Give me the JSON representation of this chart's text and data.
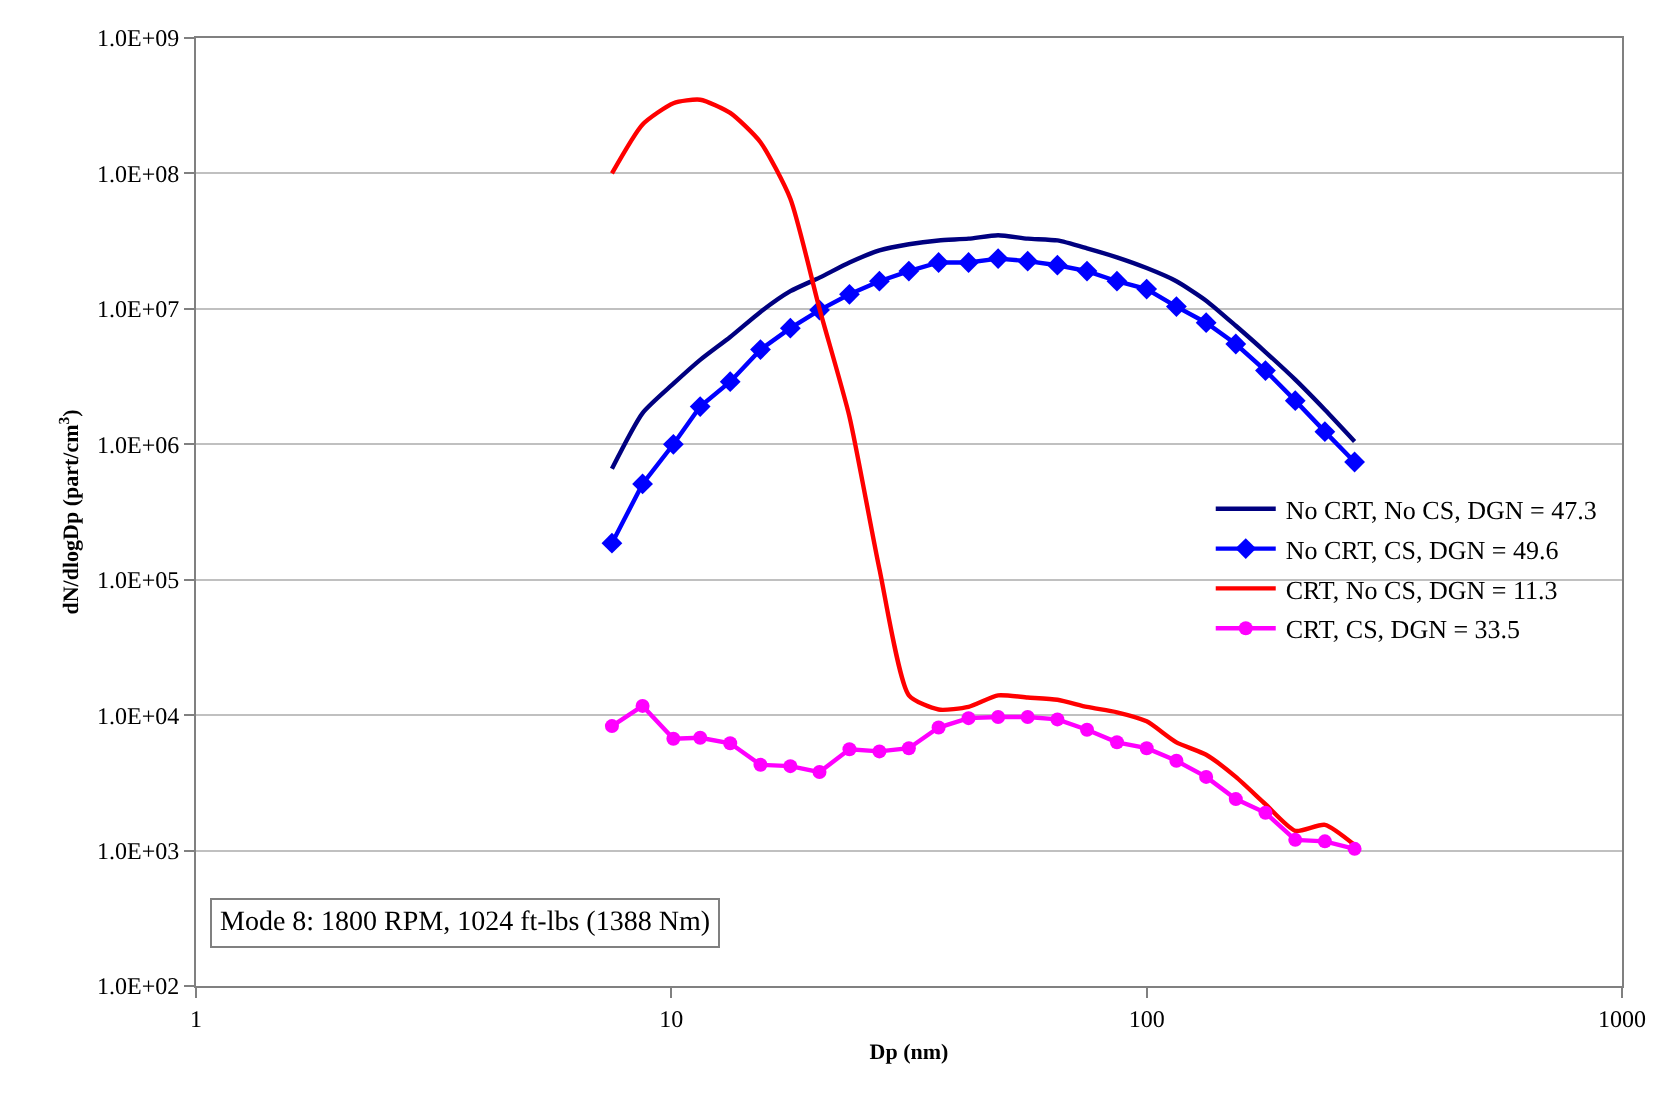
{
  "chart_data": {
    "type": "line",
    "xlabel": "Dp (nm)",
    "ylabel": "dN/dlogDp (part/cm$^{3}$)",
    "log": "xy",
    "x": [
      7.5,
      8.7,
      10.1,
      11.5,
      13.3,
      15.4,
      17.8,
      20.5,
      23.7,
      27.4,
      31.6,
      36.5,
      42.2,
      48.7,
      56.2,
      64.9,
      74.9,
      86.6,
      100,
      115.5,
      133.4,
      154,
      177.8,
      205.4,
      237.1,
      273.8
    ],
    "xlim": [
      1,
      1000
    ],
    "xticks": [
      1,
      10,
      100,
      1000
    ],
    "ylim": [
      100,
      1000000000
    ],
    "yticks": [
      {
        "value": 100,
        "label": "1.0E+02"
      },
      {
        "value": 1000,
        "label": "1.0E+03"
      },
      {
        "value": 10000,
        "label": "1.0E+04"
      },
      {
        "value": 100000,
        "label": "1.0E+05"
      },
      {
        "value": 1000000,
        "label": "1.0E+06"
      },
      {
        "value": 10000000,
        "label": "1.0E+07"
      },
      {
        "value": 100000000,
        "label": "1.0E+08"
      },
      {
        "value": 1000000000,
        "label": "1.0E+09"
      }
    ],
    "grid": "y",
    "legend": "right",
    "series": [
      {
        "name": "No CRT, No CS, DGN = 47.3",
        "color": "#000080",
        "marker": "none",
        "values": [
          660000,
          1700000,
          2800000,
          4200000,
          6200000,
          9500000,
          13500000,
          17000000,
          22000000,
          27000000,
          30000000,
          32000000,
          33000000,
          35000000,
          33000000,
          32000000,
          28000000,
          24000000,
          20000000,
          16000000,
          11500000,
          7500000,
          4800000,
          3000000,
          1800000,
          1050000
        ]
      },
      {
        "name": "No CRT, CS, DGN = 49.6",
        "color": "#0000ff",
        "marker": "diamond",
        "values": [
          186000,
          510000,
          1000000,
          1900000,
          2900000,
          5000000,
          7200000,
          9800000,
          12800000,
          16000000,
          19000000,
          22000000,
          22000000,
          23500000,
          22500000,
          21000000,
          19000000,
          16000000,
          14000000,
          10400000,
          7900000,
          5500000,
          3500000,
          2100000,
          1240000,
          740000
        ]
      },
      {
        "name": "CRT, No CS, DGN = 11.3",
        "color": "#ff0000",
        "marker": "none",
        "values": [
          100000000,
          230000000,
          330000000,
          350000000,
          280000000,
          170000000,
          65000000,
          10000000,
          1600000,
          120000,
          14000,
          11000,
          11500,
          14000,
          13500,
          13000,
          11500,
          10500,
          9000,
          6300,
          5100,
          3500,
          2200,
          1400,
          1550,
          1100
        ]
      },
      {
        "name": "CRT, CS, DGN = 33.5",
        "color": "#ff00ff",
        "marker": "circle",
        "values": [
          8300,
          11700,
          6700,
          6800,
          6200,
          4300,
          4200,
          3800,
          5600,
          5400,
          5700,
          8100,
          9500,
          9700,
          9700,
          9300,
          7800,
          6300,
          5700,
          4600,
          3500,
          2400,
          1900,
          1200,
          1170,
          1030
        ]
      }
    ],
    "annotations": [
      "Mode 8: 1800 RPM, 1024 ft-lbs (1388 Nm)"
    ]
  }
}
